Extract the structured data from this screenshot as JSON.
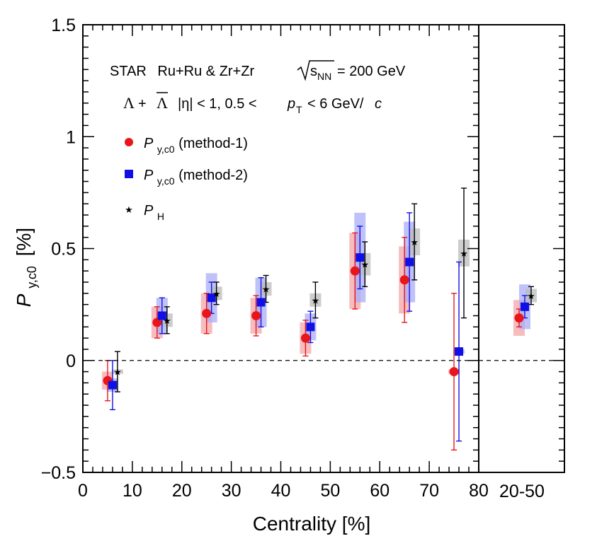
{
  "chart_data": {
    "type": "scatter",
    "annotations": {
      "experiment": "STAR",
      "collision": "Ru+Ru & Zr+Zr",
      "energy_sym": "s",
      "energy_sub": "NN",
      "energy_val": "= 200 GeV",
      "particle_lambda": "Λ",
      "particle_plus": "+",
      "particle_antilambda": "Λ",
      "cut_eta": "|η| < 1, 0.5 <",
      "cut_pt_sym": "p",
      "cut_pt_sub": "T",
      "cut_pt_range": "< 6 GeV/",
      "cut_c": "c"
    },
    "xlabel": "Centrality [%]",
    "ylabel_sym": "P",
    "ylabel_sub": "y,c0",
    "ylabel_unit": "[%]",
    "xlim": [
      0,
      80
    ],
    "ylim": [
      -0.5,
      1.5
    ],
    "x_ticks": [
      "0",
      "10",
      "20",
      "30",
      "40",
      "50",
      "60",
      "70",
      "80"
    ],
    "y_ticks": [
      "−0.5",
      "0",
      "0.5",
      "1",
      "1.5"
    ],
    "right_panel_label": "20-50",
    "zero_line": "dashed",
    "legend_position": "top-left",
    "series": [
      {
        "legend_sym": "P",
        "legend_sub": "y,c0",
        "legend_suffix": " (method-1)",
        "color": "#e8161b",
        "sys_color": "#f4a5a8",
        "marker": "circle",
        "x": [
          5,
          15,
          25,
          35,
          45,
          55,
          65,
          75
        ],
        "y": [
          -0.09,
          0.17,
          0.21,
          0.2,
          0.1,
          0.4,
          0.36,
          -0.05
        ],
        "stat_err": [
          0.09,
          0.07,
          0.09,
          0.09,
          0.08,
          0.17,
          0.19,
          0.35
        ],
        "sys_err": [
          0.04,
          0.07,
          0.09,
          0.08,
          0.07,
          0.17,
          0.15,
          0.01
        ],
        "summary_y": 0.19,
        "summary_stat": 0.04,
        "summary_sys": 0.08
      },
      {
        "legend_sym": "P",
        "legend_sub": "y,c0",
        "legend_suffix": " (method-2)",
        "color": "#1010e6",
        "sys_color": "#a9aef7",
        "marker": "square",
        "x": [
          6,
          16,
          26,
          36,
          46,
          56,
          66,
          76
        ],
        "y": [
          -0.11,
          0.2,
          0.28,
          0.26,
          0.15,
          0.46,
          0.44,
          0.04
        ],
        "stat_err": [
          0.11,
          0.08,
          0.07,
          0.11,
          0.07,
          0.14,
          0.22,
          0.4
        ],
        "sys_err": [
          0.03,
          0.08,
          0.11,
          0.11,
          0.06,
          0.2,
          0.18,
          0.01
        ],
        "summary_y": 0.24,
        "summary_stat": 0.05,
        "summary_sys": 0.1
      },
      {
        "legend_sym": "P",
        "legend_sub": "H",
        "legend_suffix": "",
        "color": "#000000",
        "sys_color": "#bcbcbc",
        "marker": "star",
        "x": [
          7,
          17,
          27,
          37,
          47,
          57,
          67,
          77
        ],
        "y": [
          -0.05,
          0.18,
          0.3,
          0.32,
          0.27,
          0.43,
          0.53,
          0.48
        ],
        "stat_err": [
          0.09,
          0.06,
          0.05,
          0.06,
          0.08,
          0.1,
          0.17,
          0.29
        ],
        "sys_err": [
          0.01,
          0.03,
          0.03,
          0.03,
          0.03,
          0.05,
          0.06,
          0.06
        ],
        "summary_y": 0.29,
        "summary_stat": 0.04,
        "summary_sys": 0.03
      }
    ]
  }
}
